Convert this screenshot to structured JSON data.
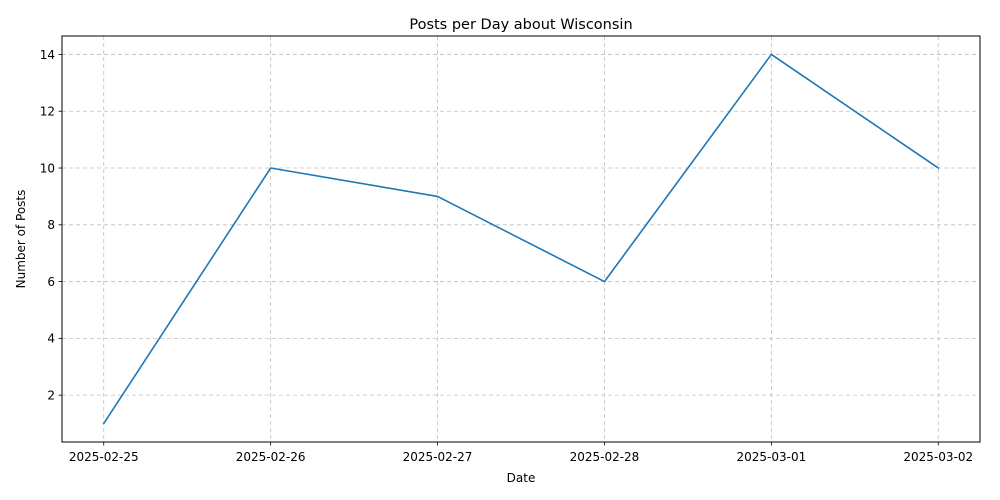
{
  "chart_data": {
    "type": "line",
    "title": "Posts per Day about Wisconsin",
    "xlabel": "Date",
    "ylabel": "Number of Posts",
    "x": [
      "2025-02-25",
      "2025-02-26",
      "2025-02-27",
      "2025-02-28",
      "2025-03-01",
      "2025-03-02"
    ],
    "series": [
      {
        "values": [
          1,
          10,
          9,
          6,
          14,
          10
        ],
        "color": "#1f77b4"
      }
    ],
    "yticks": [
      2,
      4,
      6,
      8,
      10,
      12,
      14
    ],
    "ylim": [
      0.35,
      14.65
    ],
    "grid": true,
    "grid_style": "dashed",
    "legend": "none"
  }
}
